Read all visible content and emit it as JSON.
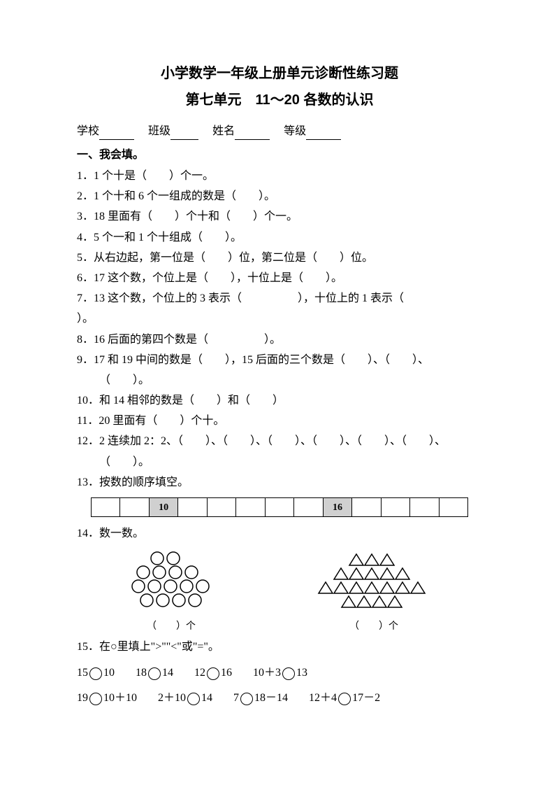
{
  "title1": "小学数学一年级上册单元诊断性练习题",
  "title2": "第七单元　11～20 各数的认识",
  "info": {
    "school": "学校",
    "class": "班级",
    "name": "姓名",
    "grade": "等级"
  },
  "section1_title": "一、我会填。",
  "q1": "1．1 个十是（　　）个一。",
  "q2": "2．1 个十和 6 个一组成的数是（　　）。",
  "q3": "3．18 里面有（　　）个十和（　　）个一。",
  "q4": "4．5 个一和 1 个十组成（　　）。",
  "q5": "5．从右边起，第一位是（　　）位，第二位是（　　）位。",
  "q6": "6．17 这个数，个位上是（　　），十位上是（　　）。",
  "q7a": "7．13 这个数，个位上的 3 表示（　　　　　），十位上的 1 表示（",
  "q7b": "）。",
  "q8": "8．16 后面的第四个数是（　　　　　）。",
  "q9a": "9．17 和 19 中间的数是（　　），15 后面的三个数是（　　）、（　　）、",
  "q9b": "（　　）。",
  "q10": "10．和 14 相邻的数是（　　）和（　　）",
  "q11": "11．20 里面有（　　）个十。",
  "q12a": "12．2 连续加 2：2、（　　）、（　　）、（　　）、（　　）、（　　）、（　　）、",
  "q12b": "（　　）。",
  "q13": "13．按数的顺序填空。",
  "strip_values": [
    "",
    "",
    "10",
    "",
    "",
    "",
    "",
    "",
    "16",
    "",
    "",
    "",
    ""
  ],
  "strip_filled": [
    2,
    8
  ],
  "q14": "14．数一数。",
  "counting_label": "（　　）个",
  "q15": "15．在○里填上\">\"\"<\"或\"=\"。",
  "compare_row1": [
    "15○10",
    "18○14",
    "12○16",
    "10＋3○13"
  ],
  "compare_row2": [
    "19○10＋10",
    "2＋10○14",
    "7○18－14",
    "12＋4○17－2"
  ]
}
